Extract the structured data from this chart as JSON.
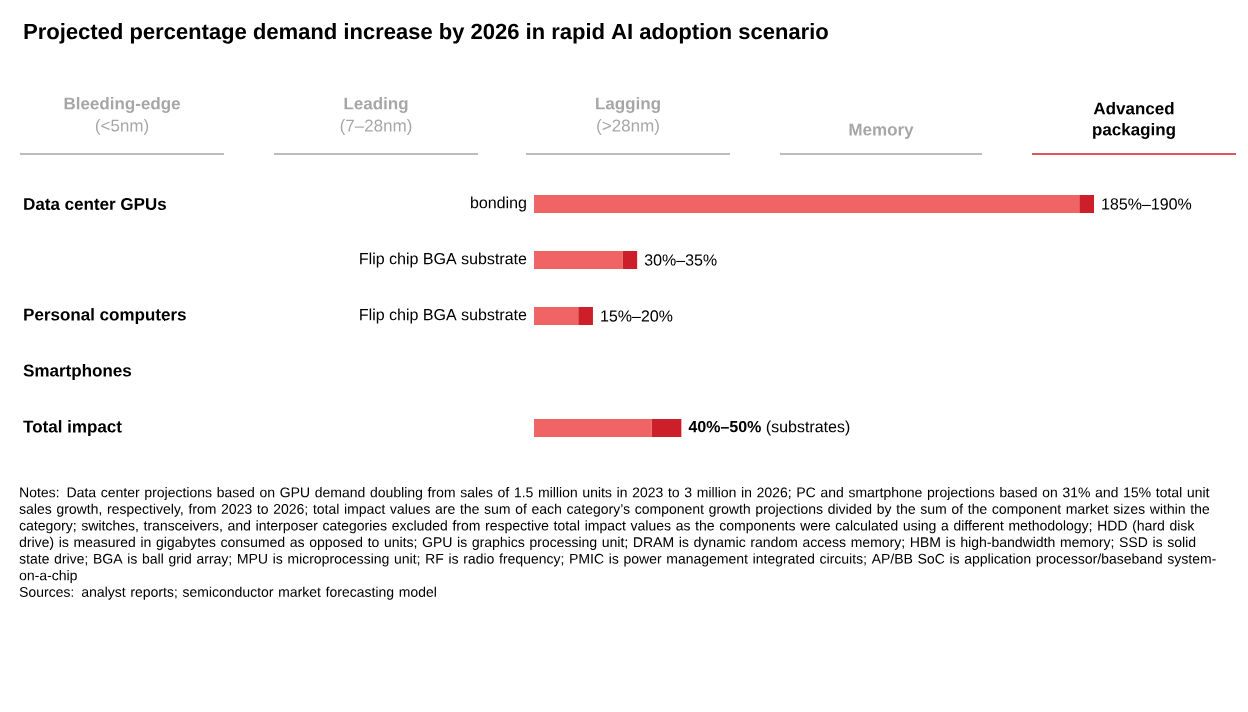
{
  "chart_data": {
    "type": "bar",
    "orientation": "horizontal",
    "stacked": true,
    "title": "Projected percentage demand increase by 2026 in rapid AI adoption scenario",
    "categories": [
      "bonding",
      "Flip chip BGA substrate",
      "Flip chip BGA substrate",
      null,
      null
    ],
    "series": [
      {
        "color": "#f06466",
        "values": [
          185,
          30,
          15,
          null,
          40
        ],
        "value_labels": [
          "185%–190%",
          "30%–35%",
          "15%–20%",
          null,
          "**40%–50%** (substrates)"
        ]
      },
      {
        "color": "#cc1f2a",
        "values": [
          5,
          5,
          5,
          null,
          10
        ]
      }
    ],
    "annotations": [
      "Bleeding-edge",
      "(<5nm)",
      "Leading",
      "(7–28nm)",
      "Lagging",
      "(>28nm)",
      "Memory",
      "Advanced packaging",
      "Data center GPUs",
      "Personal computers",
      "Smartphones",
      "Total impact",
      "Notes: Data center projections based on GPU demand doubling from sales of 1.5 million units in 2023 to 3 million in 2026; PC and smartphone projections based on 31% and 15% total unit sales growth, respectively, from 2023 to 2026; total impact values are the sum of each category’s component growth projections divided by the sum of the component market sizes within the category; switches, transceivers, and interposer categories excluded from respective total impact values as the components were calculated using a different methodology; HDD (hard disk drive) is measured in gigabytes consumed as opposed to units; GPU is graphics processing unit; DRAM is dynamic random access memory; HBM is high-bandwidth memory; SSD is solid state drive; BGA is ball grid array; MPU is microprocessing unit; RF is radio frequency; PMIC is power management integrated circuits; AP/BB SoC is application processor/baseband system-on-a-chip",
      "Sources: analyst reports; semiconductor market forecasting model"
    ]
  }
}
